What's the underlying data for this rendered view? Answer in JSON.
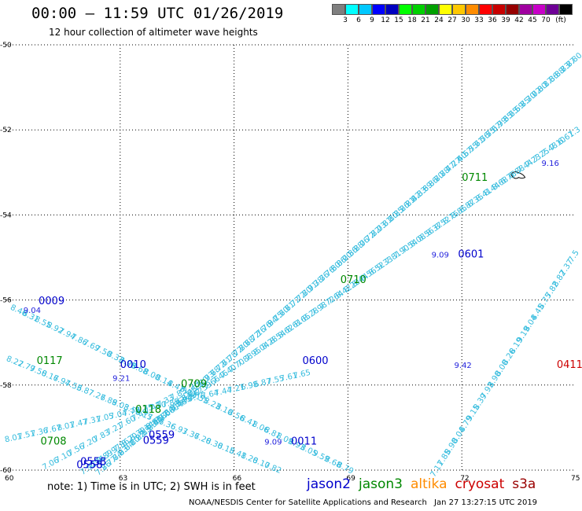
{
  "header": {
    "title": "00:00 — 11:59 UTC 01/26/2019",
    "subtitle": "12 hour collection of altimeter wave heights"
  },
  "legend": {
    "colors": [
      "#7f7f7f",
      "#00ffff",
      "#00c8ff",
      "#0000ff",
      "#0000c0",
      "#00ff00",
      "#00d000",
      "#00a000",
      "#ffff00",
      "#ffc800",
      "#ff8c00",
      "#ff0000",
      "#c80000",
      "#960000",
      "#a000a0",
      "#c800c8",
      "#6e0096",
      "#000000"
    ],
    "ticks": [
      {
        "label": "3",
        "after": 1
      },
      {
        "label": "6",
        "after": 2
      },
      {
        "label": "9",
        "after": 3
      },
      {
        "label": "12",
        "after": 4
      },
      {
        "label": "15",
        "after": 5
      },
      {
        "label": "18",
        "after": 6
      },
      {
        "label": "21",
        "after": 7
      },
      {
        "label": "24",
        "after": 8
      },
      {
        "label": "27",
        "after": 9
      },
      {
        "label": "30",
        "after": 10
      },
      {
        "label": "33",
        "after": 11
      },
      {
        "label": "36",
        "after": 12
      },
      {
        "label": "39",
        "after": 13
      },
      {
        "label": "42",
        "after": 14
      },
      {
        "label": "45",
        "after": 15
      },
      {
        "label": "70",
        "after": 16
      },
      {
        "label": "(ft)",
        "after": 17
      }
    ]
  },
  "map": {
    "lon_range": [
      60,
      75
    ],
    "lat_range": [
      -60,
      -50
    ],
    "lon_ticks": [
      "60",
      "63",
      "66",
      "69",
      "72",
      "75"
    ],
    "lat_ticks": [
      "-50",
      "-52",
      "-54",
      "-56",
      "-58",
      "-60"
    ],
    "grid_lons": [
      63,
      66,
      69,
      72
    ],
    "grid_lats": [
      -52,
      -54,
      -56,
      -58
    ],
    "track_color": "#33bbdd",
    "island": {
      "lon": 73.5,
      "lat": -53.1,
      "label": ""
    },
    "tracks": [
      {
        "name": "track-0709",
        "start": [
          62.6,
          -60.0
        ],
        "end": [
          75.0,
          -50.4
        ],
        "values": [
          "7.86",
          "7.77",
          "7.84",
          "7.93",
          "8.04",
          "8.10",
          "8.22",
          "8.15",
          "8.23",
          "8.41",
          "8.77",
          "8.64",
          "8.85",
          "8.92",
          "8.71",
          "8.68",
          "7.72",
          "7.80",
          "7.93",
          "7.68",
          "7.72",
          "7.61",
          "7.78",
          "7.72",
          "7.80",
          "7.68",
          "7.72",
          "7.16",
          "7.76",
          "7.94",
          "8.15",
          "7.60",
          "7.61",
          "7.72",
          "7.72",
          "7.80",
          "7.91",
          "7.38",
          "7.36",
          "7.76",
          "7.60",
          "8.06",
          "8.00",
          "7.56",
          "8.28",
          "8.06",
          "7.72",
          "7.72",
          "8.03",
          "7.81",
          "8.10",
          "8.25",
          "8.26",
          "8.21",
          "8.42",
          "8.33",
          "8.69",
          "8.86",
          "8.80",
          "7.88",
          "7.47",
          "7.27",
          "7.40",
          "6.57",
          "6.55",
          "7.71",
          "6.56",
          "7.55",
          "7.07",
          "6.99",
          "7.35",
          "6.25",
          "6.59",
          "6.85",
          "7.30",
          "7.02",
          "7.00",
          "8.17",
          "8.36",
          "8.88",
          "8.73",
          "8.77",
          "8.80"
        ]
      },
      {
        "name": "track-0600",
        "start": [
          62.2,
          -60.0
        ],
        "end": [
          75.0,
          -52.1
        ],
        "values": [
          "7.92",
          "7.94",
          "7.89",
          "7.97",
          "7.86",
          "8.20",
          "8.30",
          "8.14",
          "8.66",
          "8.80",
          "7.60",
          "7.48",
          "7.55",
          "7.62",
          "7.59",
          "7.66",
          "7.46",
          "7.40",
          "7.70",
          "7.88",
          "7.95",
          "8.04",
          "8.28",
          "8.54",
          "8.62",
          "8.61",
          "8.65",
          "8.28",
          "7.98",
          "7.72",
          "7.64",
          "8.42",
          "8.20",
          "8.44",
          "8.56",
          "8.52",
          "9.33",
          "7.81",
          "7.90",
          "7.54",
          "8.08",
          "8.56",
          "8.37",
          "8.52",
          "8.76",
          "8.85",
          "8.87",
          "8.35",
          "8.41",
          "8.44",
          "8.68",
          "6.78",
          "6.88",
          "7.44",
          "7.23",
          "7.25",
          "7.48",
          "7.10",
          "6.61",
          "7.3"
        ]
      },
      {
        "name": "track-0117",
        "start": [
          60.3,
          -56.3
        ],
        "end": [
          68.9,
          -60.0
        ],
        "values": [
          "8.46",
          "8.31",
          "8.55",
          "8.92",
          "7.94",
          "7.86",
          "7.69",
          "7.50",
          "8.33",
          "8.98",
          "8.68",
          "8.00",
          "8.14",
          "8.41",
          "8.77",
          "8.55",
          "8.23",
          "8.10",
          "8.56",
          "8.41",
          "8.06",
          "8.81",
          "8.09",
          "8.93",
          "8.05",
          "9.59",
          "8.68",
          "8.79"
        ]
      },
      {
        "name": "track-0118",
        "start": [
          60.2,
          -57.5
        ],
        "end": [
          67.0,
          -60.0
        ],
        "values": [
          "8.22",
          "7.79",
          "7.50",
          "8.16",
          "7.94",
          "7.53",
          "6.87",
          "7.27",
          "6.89",
          "8.03",
          "8.59",
          "8.15",
          "7.76",
          "7.36",
          "6.93",
          "7.36",
          "7.20",
          "8.30",
          "8.15",
          "8.41",
          "8.20",
          "8.10",
          "7.82"
        ]
      },
      {
        "name": "track-0708",
        "start": [
          60.2,
          -59.3
        ],
        "end": [
          67.8,
          -57.8
        ],
        "values": [
          "8.01",
          "7.51",
          "7.36",
          "7.67",
          "8.01",
          "7.47",
          "7.31",
          "7.05",
          "7.04",
          "7.78",
          "7.75",
          "7.50",
          "7.85",
          "7.96",
          "7.76",
          "7.64",
          "7.44",
          "7.21",
          "6.98",
          "6.87",
          "7.55",
          "7.61",
          "7.65"
        ]
      },
      {
        "name": "track-0708b",
        "start": [
          61.2,
          -59.9
        ],
        "end": [
          64.9,
          -58.1
        ],
        "values": [
          "7.06",
          "7.10",
          "7.56",
          "7.20",
          "7.83",
          "7.21",
          "7.60",
          "7.48",
          "7.42",
          "7.33",
          "7.83",
          "7.28"
        ]
      },
      {
        "name": "track-0411",
        "start": [
          71.4,
          -60.0
        ],
        "end": [
          75.0,
          -55.0
        ],
        "values": [
          "7.11",
          "7.85",
          "8.90",
          "8.04",
          "8.79",
          "9.15",
          "8.39",
          "7.93",
          "8.90",
          "8.00",
          "8.26",
          "8.19",
          "9.19",
          "8.04",
          "8.45",
          "8.75",
          "7.82",
          "8.82",
          "7.37",
          "7.5"
        ]
      }
    ],
    "labels": [
      {
        "text": "0009",
        "lon": 60.85,
        "lat": -56.1,
        "sat": "jason2"
      },
      {
        "text": "9.04",
        "lon": 60.45,
        "lat": -56.3,
        "sat": "jason2v"
      },
      {
        "text": "0010",
        "lon": 63.0,
        "lat": -57.6,
        "sat": "jason2"
      },
      {
        "text": "9.21",
        "lon": 62.8,
        "lat": -57.9,
        "sat": "jason2v"
      },
      {
        "text": "0117",
        "lon": 60.8,
        "lat": -57.5,
        "sat": "jason3"
      },
      {
        "text": "0709",
        "lon": 64.6,
        "lat": -58.05,
        "sat": "jason3"
      },
      {
        "text": "0118",
        "lon": 63.4,
        "lat": -58.65,
        "sat": "jason3"
      },
      {
        "text": "0708",
        "lon": 60.9,
        "lat": -59.4,
        "sat": "jason3"
      },
      {
        "text": "0559",
        "lon": 63.75,
        "lat": -59.25,
        "sat": "jason2"
      },
      {
        "text": "0559",
        "lon": 63.6,
        "lat": -59.38,
        "sat": "jason2"
      },
      {
        "text": "0558",
        "lon": 61.95,
        "lat": -59.88,
        "sat": "jason2"
      },
      {
        "text": "0558",
        "lon": 61.85,
        "lat": -59.95,
        "sat": "jason2"
      },
      {
        "text": "9.09",
        "lon": 66.8,
        "lat": -59.4,
        "sat": "jason2v"
      },
      {
        "text": "0011",
        "lon": 67.5,
        "lat": -59.4,
        "sat": "jason2"
      },
      {
        "text": "0600",
        "lon": 67.8,
        "lat": -57.5,
        "sat": "jason2"
      },
      {
        "text": "0710",
        "lon": 68.8,
        "lat": -55.6,
        "sat": "jason3"
      },
      {
        "text": "0601",
        "lon": 71.9,
        "lat": -55.0,
        "sat": "jason2"
      },
      {
        "text": "9.09",
        "lon": 71.2,
        "lat": -55.0,
        "sat": "jason2v"
      },
      {
        "text": "0711",
        "lon": 72.0,
        "lat": -53.2,
        "sat": "jason3"
      },
      {
        "text": "9.16",
        "lon": 74.1,
        "lat": -52.85,
        "sat": "jason2v"
      },
      {
        "text": "9.42",
        "lon": 71.8,
        "lat": -57.6,
        "sat": "jason2v"
      },
      {
        "text": "0411",
        "lon": 74.5,
        "lat": -57.6,
        "sat": "cryosat"
      }
    ]
  },
  "satellites": [
    {
      "name": "jason2",
      "color": "#0000cc"
    },
    {
      "name": "jason3",
      "color": "#008800"
    },
    {
      "name": "altika",
      "color": "#ff8c00"
    },
    {
      "name": "cryosat",
      "color": "#cc0000"
    },
    {
      "name": "s3a",
      "color": "#990000"
    }
  ],
  "footer": {
    "note": "note:  1) Time is in UTC;  2) SWH is in feet",
    "credit": "NOAA/NESDIS Center for Satellite Applications and Research",
    "stamp": "Jan 27 13:27:15 UTC 2019"
  }
}
